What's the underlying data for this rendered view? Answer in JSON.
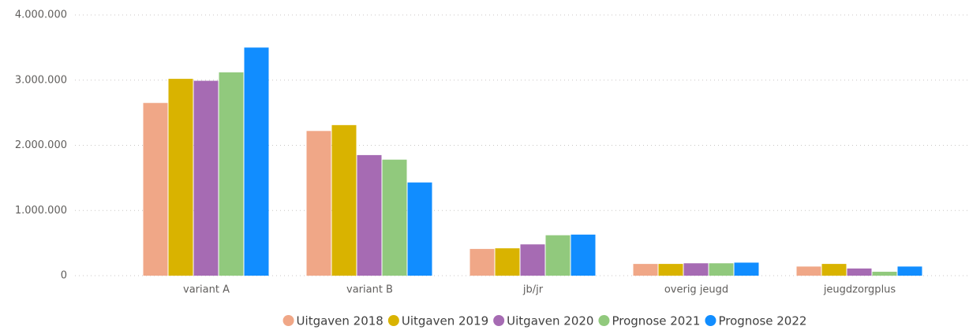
{
  "chart_data": {
    "type": "bar",
    "categories": [
      "variant A",
      "variant B",
      "jb/jr",
      "overig jeugd",
      "jeugdzorgplus"
    ],
    "series": [
      {
        "name": "Uitgaven 2018",
        "color": "#f0a787",
        "values": [
          2650000,
          2220000,
          410000,
          180000,
          140000
        ]
      },
      {
        "name": "Uitgaven 2019",
        "color": "#d9b300",
        "values": [
          3020000,
          2310000,
          420000,
          180000,
          180000
        ]
      },
      {
        "name": "Uitgaven 2020",
        "color": "#a66bb3",
        "values": [
          2990000,
          1850000,
          480000,
          190000,
          110000
        ]
      },
      {
        "name": "Prognose 2021",
        "color": "#91c97d",
        "values": [
          3120000,
          1780000,
          620000,
          190000,
          60000
        ]
      },
      {
        "name": "Prognose 2022",
        "color": "#118dff",
        "values": [
          3500000,
          1430000,
          630000,
          200000,
          140000
        ]
      }
    ],
    "ylim": [
      0,
      4000000
    ],
    "yticks": [
      0,
      {
        "value": 1000000,
        "label": "1.000.000"
      },
      {
        "value": 2000000,
        "label": "2.000.000"
      },
      {
        "value": 3000000,
        "label": "3.000.000"
      },
      {
        "value": 4000000,
        "label": "4.000.000"
      }
    ],
    "grid": true,
    "legend": "bottom"
  }
}
